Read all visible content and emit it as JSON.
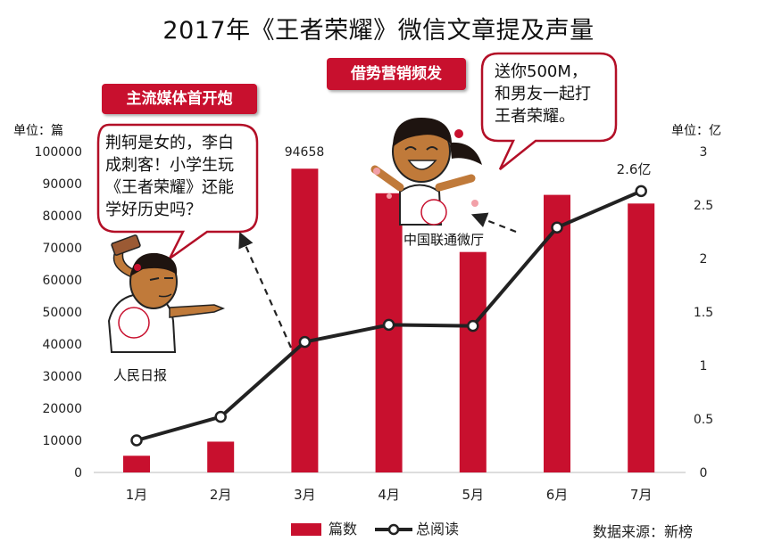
{
  "title": "2017年《王者荣耀》微信文章提及声量",
  "chart_data": {
    "type": "bar",
    "categories": [
      "1月",
      "2月",
      "3月",
      "4月",
      "5月",
      "6月",
      "7月"
    ],
    "series": [
      {
        "name": "篇数",
        "type": "bar",
        "axis": "left",
        "color": "#c8102e",
        "values": [
          5200,
          9600,
          94658,
          87000,
          68700,
          86500,
          83800
        ]
      },
      {
        "name": "总阅读",
        "type": "line",
        "axis": "right",
        "color": "#222222",
        "values": [
          0.3,
          0.52,
          1.22,
          1.38,
          1.37,
          2.29,
          2.63
        ]
      }
    ],
    "left_axis": {
      "unit": "单位：篇",
      "min": 0,
      "max": 100000,
      "ticks": [
        "0",
        "10000",
        "20000",
        "30000",
        "40000",
        "50000",
        "60000",
        "70000",
        "80000",
        "90000",
        "100000"
      ]
    },
    "right_axis": {
      "unit": "单位：亿",
      "min": 0,
      "max": 3,
      "ticks": [
        "0",
        "0.5",
        "1",
        "1.5",
        "2",
        "2.5",
        "3"
      ]
    },
    "data_labels": {
      "bar_march": "94658",
      "line_july": "2.6亿"
    },
    "legend_position": "bottom",
    "grid": false
  },
  "annotations": {
    "tag_left": "主流媒体首开炮",
    "tag_right": "借势营销频发",
    "bubble_left": [
      "荆轲是女的，李白",
      "成刺客！小学生玩",
      "《王者荣耀》还能",
      "学好历史吗？"
    ],
    "bubble_right": [
      "送你500M，",
      "和男友一起打",
      "王者荣耀。"
    ],
    "character_left_label": "人民日报",
    "character_right_label": "中国联通微厅"
  },
  "source": "数据来源：新榜",
  "colors": {
    "accent": "#c8102e",
    "line": "#222222",
    "skin": "#c07a3a",
    "hair": "#1e1410"
  }
}
